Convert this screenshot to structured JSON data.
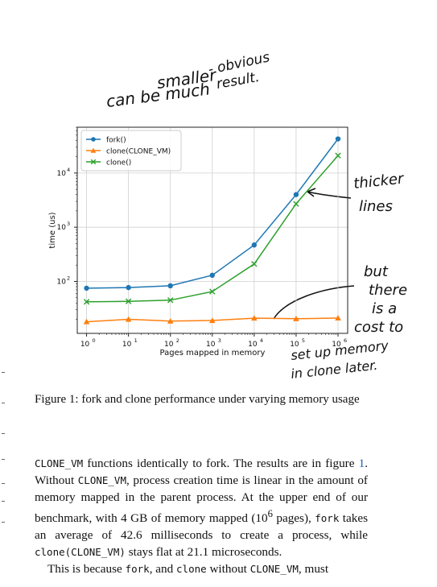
{
  "annotations": {
    "top_line1": "can be much",
    "top_line2": "smaller",
    "top_line3": "- obvious",
    "top_line4": "result.",
    "thicker_line1": "thicker",
    "thicker_line2": "lines",
    "cost_line1": "but",
    "cost_line2": "there",
    "cost_line3": "is a",
    "cost_line4": "cost to",
    "cost_line5": "set up memory",
    "cost_line6": "in clone later."
  },
  "chart_data": {
    "type": "line",
    "xlabel": "Pages mapped in memory",
    "ylabel": "time (us)",
    "xscale": "log",
    "yscale": "log",
    "x": [
      1,
      10,
      100,
      1000,
      10000,
      100000,
      1000000
    ],
    "x_ticks": [
      "10",
      "10",
      "10",
      "10",
      "10",
      "10",
      "10"
    ],
    "x_tick_exp": [
      "0",
      "1",
      "2",
      "3",
      "4",
      "5",
      "6"
    ],
    "y_ticks": [
      "10",
      "10",
      "10"
    ],
    "y_tick_exp": [
      "2",
      "3",
      "4"
    ],
    "y_tick_values": [
      100,
      1000,
      10000
    ],
    "xlim": [
      0.6,
      1700000
    ],
    "ylim": [
      11,
      70000
    ],
    "grid": true,
    "legend_position": "upper-left",
    "series": [
      {
        "name": "fork()",
        "color": "#1f77b4",
        "marker": "circle",
        "values": [
          75,
          77,
          83,
          130,
          470,
          4000,
          42600
        ]
      },
      {
        "name": "clone(CLONE_VM)",
        "color": "#ff7f0e",
        "marker": "triangle",
        "values": [
          18,
          20,
          18.5,
          19,
          21,
          20.5,
          21.1
        ]
      },
      {
        "name": "clone()",
        "color": "#2ca02c",
        "marker": "x",
        "values": [
          42,
          43,
          45,
          65,
          210,
          2700,
          21000
        ]
      }
    ]
  },
  "caption": {
    "text": "Figure 1: fork and clone performance under varying memory usage"
  },
  "body": {
    "p1_code1": "CLONE_VM",
    "p1_t1": " functions identically to fork. The results are in figure ",
    "p1_ref": "1",
    "p1_t2": ". Without ",
    "p1_code2": "CLONE_VM",
    "p1_t3": ", process creation time is linear in the amount of memory mapped in the parent process. At the upper end of our benchmark, with 4 GB of memory mapped (10",
    "p1_sup": "6",
    "p1_t4": " pages), ",
    "p1_code3": "fork",
    "p1_t5": " takes an average of 42.6 milliseconds to create a process, while ",
    "p1_code4": "clone(CLONE_VM)",
    "p1_t6": " stays flat at 21.1 microseconds.",
    "p2_t1": "This is because ",
    "p2_code1": "fork",
    "p2_t2": ", and ",
    "p2_code2": "clone",
    "p2_t3": " without ",
    "p2_code3": "CLONE_VM",
    "p2_t4": ", must"
  }
}
